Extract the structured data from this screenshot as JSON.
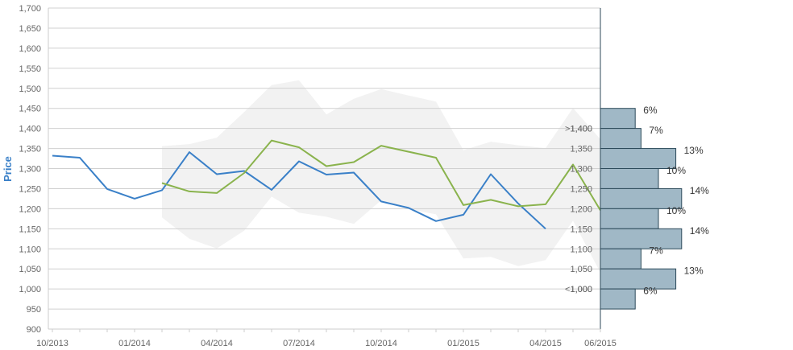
{
  "chart_data": {
    "type": "line",
    "ylabel": "Price",
    "xlabel": "",
    "ylim": [
      900,
      1700
    ],
    "y_ticks": [
      "900",
      "950",
      "1,000",
      "1,050",
      "1,100",
      "1,150",
      "1,200",
      "1,250",
      "1,300",
      "1,350",
      "1,400",
      "1,450",
      "1,500",
      "1,550",
      "1,600",
      "1,650",
      "1,700"
    ],
    "x_ticks": [
      "10/2013",
      "01/2014",
      "04/2014",
      "07/2014",
      "10/2014",
      "01/2015",
      "04/2015",
      "06/2015"
    ],
    "grid": true,
    "colors": {
      "series_blue": "#3a80c8",
      "series_green": "#8ab34d",
      "band": "#f2f2f2",
      "hist_fill": "#a0b8c6",
      "hist_stroke": "#2c4a5a"
    },
    "series": [
      {
        "values": [
          {
            "x": "2013-10",
            "y": 1332
          },
          {
            "x": "2013-11",
            "y": 1327
          },
          {
            "x": "2013-12",
            "y": 1249
          },
          {
            "x": "2014-01",
            "y": 1225
          },
          {
            "x": "2014-02",
            "y": 1246
          },
          {
            "x": "2014-03",
            "y": 1341
          },
          {
            "x": "2014-04",
            "y": 1286
          },
          {
            "x": "2014-05",
            "y": 1294
          },
          {
            "x": "2014-06",
            "y": 1247
          },
          {
            "x": "2014-07",
            "y": 1318
          },
          {
            "x": "2014-08",
            "y": 1285
          },
          {
            "x": "2014-09",
            "y": 1290
          },
          {
            "x": "2014-10",
            "y": 1218
          },
          {
            "x": "2014-11",
            "y": 1202
          },
          {
            "x": "2014-12",
            "y": 1169
          },
          {
            "x": "2015-01",
            "y": 1185
          },
          {
            "x": "2015-02",
            "y": 1286
          },
          {
            "x": "2015-03",
            "y": 1213
          },
          {
            "x": "2015-04",
            "y": 1150
          }
        ]
      },
      {
        "values": [
          {
            "x": "2014-02",
            "y": 1264
          },
          {
            "x": "2014-03",
            "y": 1243
          },
          {
            "x": "2014-04",
            "y": 1239
          },
          {
            "x": "2014-05",
            "y": 1289
          },
          {
            "x": "2014-06",
            "y": 1370
          },
          {
            "x": "2014-07",
            "y": 1353
          },
          {
            "x": "2014-08",
            "y": 1306
          },
          {
            "x": "2014-09",
            "y": 1316
          },
          {
            "x": "2014-10",
            "y": 1357
          },
          {
            "x": "2014-11",
            "y": 1342
          },
          {
            "x": "2014-12",
            "y": 1327
          },
          {
            "x": "2015-01",
            "y": 1209
          },
          {
            "x": "2015-02",
            "y": 1222
          },
          {
            "x": "2015-03",
            "y": 1206
          },
          {
            "x": "2015-04",
            "y": 1211
          },
          {
            "x": "2015-05",
            "y": 1310
          },
          {
            "x": "2015-06",
            "y": 1196
          }
        ]
      }
    ],
    "band": {
      "upper": [
        {
          "x": "2014-02",
          "y": 1356
        },
        {
          "x": "2014-03",
          "y": 1361
        },
        {
          "x": "2014-04",
          "y": 1377
        },
        {
          "x": "2014-05",
          "y": 1441
        },
        {
          "x": "2014-06",
          "y": 1508
        },
        {
          "x": "2014-07",
          "y": 1520
        },
        {
          "x": "2014-08",
          "y": 1435
        },
        {
          "x": "2014-09",
          "y": 1474
        },
        {
          "x": "2014-10",
          "y": 1498
        },
        {
          "x": "2014-11",
          "y": 1482
        },
        {
          "x": "2014-12",
          "y": 1467
        },
        {
          "x": "2015-01",
          "y": 1346
        },
        {
          "x": "2015-02",
          "y": 1367
        },
        {
          "x": "2015-03",
          "y": 1358
        },
        {
          "x": "2015-04",
          "y": 1351
        },
        {
          "x": "2015-05",
          "y": 1451
        },
        {
          "x": "2015-06",
          "y": 1373
        }
      ],
      "lower": [
        {
          "x": "2014-02",
          "y": 1178
        },
        {
          "x": "2014-03",
          "y": 1125
        },
        {
          "x": "2014-04",
          "y": 1101
        },
        {
          "x": "2014-05",
          "y": 1145
        },
        {
          "x": "2014-06",
          "y": 1230
        },
        {
          "x": "2014-07",
          "y": 1190
        },
        {
          "x": "2014-08",
          "y": 1180
        },
        {
          "x": "2014-09",
          "y": 1162
        },
        {
          "x": "2014-10",
          "y": 1221
        },
        {
          "x": "2014-11",
          "y": 1199
        },
        {
          "x": "2014-12",
          "y": 1186
        },
        {
          "x": "2015-01",
          "y": 1076
        },
        {
          "x": "2015-02",
          "y": 1080
        },
        {
          "x": "2015-03",
          "y": 1057
        },
        {
          "x": "2015-04",
          "y": 1072
        },
        {
          "x": "2015-05",
          "y": 1170
        },
        {
          "x": "2015-06",
          "y": 1041
        }
      ]
    },
    "histogram": {
      "bins": [
        ">1,400",
        "1,400",
        "1,350",
        "1,300",
        "1,250",
        "1,200",
        "1,150",
        "1,100",
        "1,050",
        "1,000",
        "<1,000"
      ],
      "bin_values": [
        1425,
        1375,
        1325,
        1275,
        1225,
        1175,
        1125,
        1075,
        1025,
        975
      ],
      "percent_values": [
        6,
        7,
        13,
        10,
        14,
        10,
        14,
        7,
        13,
        6
      ],
      "percent_labels": [
        "6%",
        "7%",
        "13%",
        "10%",
        "14%",
        "10%",
        "14%",
        "7%",
        "13%",
        "6%"
      ]
    }
  }
}
